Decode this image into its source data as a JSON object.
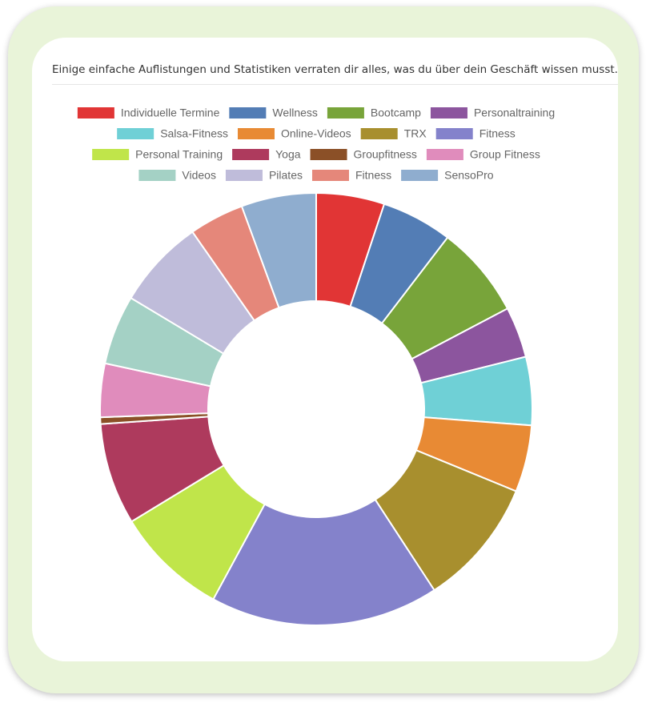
{
  "header": {
    "text": "Einige einfache Auflistungen und Statistiken verraten dir alles, was du über dein Geschäft wissen musst."
  },
  "chart_data": {
    "type": "doughnut",
    "categories": [
      "Individuelle Termine",
      "Wellness",
      "Bootcamp",
      "Personaltraining",
      "Salsa-Fitness",
      "Online-Videos",
      "TRX",
      "Fitness",
      "Personal Training",
      "Yoga",
      "Groupfitness",
      "Group Fitness",
      "Videos",
      "Pilates",
      "Fitness",
      "SensoPro"
    ],
    "values": [
      5.1,
      5.3,
      6.9,
      3.8,
      5.1,
      5.0,
      9.6,
      17.1,
      8.4,
      7.6,
      0.5,
      4.0,
      5.2,
      6.7,
      4.1,
      5.6
    ],
    "colors": [
      "#e13535",
      "#537db5",
      "#78a43a",
      "#8c559e",
      "#6fd0d6",
      "#e88a34",
      "#a88f2e",
      "#8482cb",
      "#c0e54a",
      "#ae3a5d",
      "#8b5027",
      "#e08cbc",
      "#a4d1c5",
      "#bfbcda",
      "#e5877a",
      "#8fadcf"
    ],
    "legend": "top"
  }
}
